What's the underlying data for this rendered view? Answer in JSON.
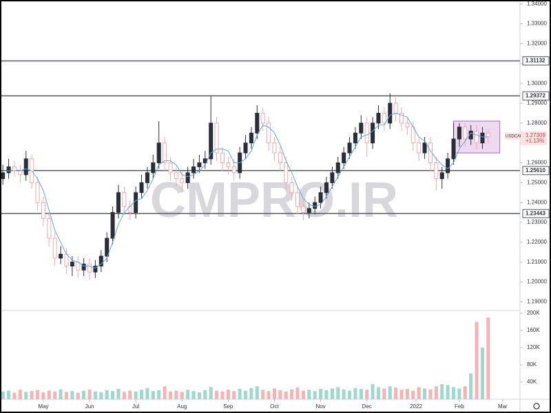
{
  "chart_data": [
    {
      "type": "candlestick",
      "symbol": "USDCAD",
      "last_price": {
        "value": 1.27309,
        "label": "1.27309"
      },
      "change": "+1.13%",
      "watermark": "CMPRO.IR",
      "up_color": "#2a2e39",
      "down_color": "#f4a7a7",
      "ma_color": "#5aa9e6",
      "xlim": [
        -0.5,
        89.5
      ],
      "ylim": [
        1.186,
        1.342
      ],
      "yticks": [
        {
          "value": 1.19,
          "label": "1.19000"
        },
        {
          "value": 1.2,
          "label": "1.20000"
        },
        {
          "value": 1.21,
          "label": "1.21000"
        },
        {
          "value": 1.22,
          "label": "1.22000"
        },
        {
          "value": 1.23,
          "label": "1.23000"
        },
        {
          "value": 1.24,
          "label": "1.24000"
        },
        {
          "value": 1.25,
          "label": "1.25000"
        },
        {
          "value": 1.26,
          "label": "1.26000"
        },
        {
          "value": 1.27,
          "label": "1.27000"
        },
        {
          "value": 1.28,
          "label": "1.28000"
        },
        {
          "value": 1.29,
          "label": "1.29000"
        },
        {
          "value": 1.3,
          "label": "1.30000"
        },
        {
          "value": 1.31,
          "label": "1.31000"
        },
        {
          "value": 1.32,
          "label": "1.32000"
        },
        {
          "value": 1.33,
          "label": "1.33000"
        },
        {
          "value": 1.34,
          "label": "1.34000"
        }
      ],
      "levels": [
        {
          "value": 1.31132,
          "label": "1.31132"
        },
        {
          "value": 1.29372,
          "label": "1.29372"
        },
        {
          "value": 1.2561,
          "label": "1.25610"
        },
        {
          "value": 1.23443,
          "label": "1.23443"
        }
      ],
      "range_box": {
        "start": 78,
        "end": 86,
        "low": 1.265,
        "high": 1.281
      },
      "open": [
        1.252,
        1.255,
        1.258,
        1.256,
        1.254,
        1.262,
        1.25,
        1.24,
        1.232,
        1.222,
        1.212,
        1.214,
        1.208,
        1.21,
        1.206,
        1.209,
        1.205,
        1.208,
        1.213,
        1.222,
        1.235,
        1.245,
        1.238,
        1.235,
        1.245,
        1.25,
        1.255,
        1.26,
        1.27,
        1.26,
        1.255,
        1.252,
        1.25,
        1.255,
        1.258,
        1.26,
        1.262,
        1.28,
        1.265,
        1.26,
        1.258,
        1.255,
        1.265,
        1.27,
        1.275,
        1.285,
        1.28,
        1.27,
        1.265,
        1.26,
        1.25,
        1.245,
        1.238,
        1.235,
        1.237,
        1.24,
        1.245,
        1.25,
        1.255,
        1.26,
        1.265,
        1.27,
        1.275,
        1.28,
        1.27,
        1.28,
        1.285,
        1.28,
        1.29,
        1.285,
        1.28,
        1.278,
        1.27,
        1.265,
        1.27,
        1.26,
        1.252,
        1.255,
        1.262,
        1.272,
        1.278,
        1.272,
        1.276,
        1.27,
        1.275
      ],
      "high": [
        1.259,
        1.262,
        1.261,
        1.259,
        1.266,
        1.264,
        1.253,
        1.243,
        1.235,
        1.225,
        1.218,
        1.217,
        1.213,
        1.213,
        1.212,
        1.212,
        1.211,
        1.216,
        1.225,
        1.238,
        1.249,
        1.248,
        1.241,
        1.248,
        1.254,
        1.258,
        1.264,
        1.281,
        1.273,
        1.263,
        1.258,
        1.256,
        1.258,
        1.262,
        1.264,
        1.266,
        1.294,
        1.283,
        1.268,
        1.263,
        1.262,
        1.268,
        1.274,
        1.278,
        1.289,
        1.288,
        1.283,
        1.273,
        1.268,
        1.263,
        1.253,
        1.248,
        1.241,
        1.24,
        1.243,
        1.248,
        1.253,
        1.258,
        1.263,
        1.268,
        1.273,
        1.278,
        1.284,
        1.283,
        1.283,
        1.289,
        1.288,
        1.295,
        1.293,
        1.288,
        1.283,
        1.281,
        1.273,
        1.273,
        1.273,
        1.263,
        1.258,
        1.265,
        1.28,
        1.28,
        1.28,
        1.279,
        1.279,
        1.278,
        1.277
      ],
      "low": [
        1.249,
        1.252,
        1.253,
        1.25,
        1.251,
        1.247,
        1.236,
        1.228,
        1.218,
        1.208,
        1.209,
        1.204,
        1.203,
        1.202,
        1.203,
        1.201,
        1.202,
        1.205,
        1.21,
        1.219,
        1.232,
        1.234,
        1.231,
        1.232,
        1.242,
        1.247,
        1.252,
        1.257,
        1.256,
        1.251,
        1.248,
        1.245,
        1.247,
        1.252,
        1.255,
        1.257,
        1.259,
        1.261,
        1.256,
        1.254,
        1.251,
        1.252,
        1.262,
        1.267,
        1.272,
        1.276,
        1.266,
        1.261,
        1.256,
        1.246,
        1.241,
        1.234,
        1.231,
        1.232,
        1.234,
        1.237,
        1.242,
        1.247,
        1.252,
        1.257,
        1.262,
        1.267,
        1.272,
        1.263,
        1.267,
        1.277,
        1.276,
        1.277,
        1.281,
        1.276,
        1.274,
        1.266,
        1.261,
        1.262,
        1.256,
        1.246,
        1.247,
        1.252,
        1.259,
        1.268,
        1.268,
        1.269,
        1.267,
        1.267,
        1.27
      ],
      "close": [
        1.255,
        1.258,
        1.256,
        1.254,
        1.262,
        1.25,
        1.24,
        1.232,
        1.222,
        1.212,
        1.214,
        1.208,
        1.21,
        1.206,
        1.209,
        1.205,
        1.208,
        1.213,
        1.222,
        1.235,
        1.245,
        1.238,
        1.235,
        1.245,
        1.25,
        1.255,
        1.26,
        1.27,
        1.26,
        1.255,
        1.252,
        1.25,
        1.255,
        1.258,
        1.26,
        1.262,
        1.28,
        1.265,
        1.26,
        1.258,
        1.255,
        1.265,
        1.27,
        1.275,
        1.285,
        1.28,
        1.27,
        1.265,
        1.26,
        1.25,
        1.245,
        1.238,
        1.235,
        1.237,
        1.24,
        1.245,
        1.25,
        1.255,
        1.26,
        1.265,
        1.27,
        1.275,
        1.28,
        1.27,
        1.28,
        1.285,
        1.28,
        1.29,
        1.285,
        1.28,
        1.278,
        1.27,
        1.265,
        1.27,
        1.26,
        1.252,
        1.255,
        1.262,
        1.272,
        1.278,
        1.272,
        1.276,
        1.27,
        1.275,
        1.2731
      ],
      "ma": [
        1.256,
        1.256,
        1.256,
        1.256,
        1.257,
        1.256,
        1.252,
        1.246,
        1.236,
        1.226,
        1.22,
        1.214,
        1.211,
        1.21,
        1.208,
        1.208,
        1.207,
        1.209,
        1.212,
        1.22,
        1.229,
        1.235,
        1.238,
        1.241,
        1.242,
        1.246,
        1.252,
        1.259,
        1.261,
        1.261,
        1.259,
        1.254,
        1.253,
        1.254,
        1.256,
        1.259,
        1.265,
        1.267,
        1.267,
        1.266,
        1.26,
        1.26,
        1.262,
        1.266,
        1.274,
        1.279,
        1.278,
        1.275,
        1.269,
        1.261,
        1.255,
        1.248,
        1.242,
        1.239,
        1.238,
        1.239,
        1.243,
        1.248,
        1.253,
        1.258,
        1.263,
        1.268,
        1.273,
        1.274,
        1.276,
        1.279,
        1.279,
        1.284,
        1.285,
        1.284,
        1.283,
        1.278,
        1.273,
        1.271,
        1.266,
        1.262,
        1.259,
        1.257,
        1.26,
        1.267,
        1.271,
        1.275,
        1.274,
        1.273,
        1.273
      ]
    },
    {
      "type": "bar",
      "up_color": "#9fd8cc",
      "down_color": "#f6b3b3",
      "xlim": [
        -0.5,
        89.5
      ],
      "ylim": [
        0,
        205000
      ],
      "yticks": [
        {
          "value": 40000,
          "label": "40K"
        },
        {
          "value": 80000,
          "label": "80K"
        },
        {
          "value": 120000,
          "label": "120K"
        },
        {
          "value": 160000,
          "label": "160K"
        },
        {
          "value": 200000,
          "label": "200K"
        }
      ],
      "xticks": [
        {
          "value": 7,
          "label": "May"
        },
        {
          "value": 15,
          "label": "Jun"
        },
        {
          "value": 23,
          "label": "Jul"
        },
        {
          "value": 31,
          "label": "Aug"
        },
        {
          "value": 39,
          "label": "Sep"
        },
        {
          "value": 47,
          "label": "Oct"
        },
        {
          "value": 55,
          "label": "Nov"
        },
        {
          "value": 63,
          "label": "Dec"
        },
        {
          "value": 71.5,
          "label": "2022"
        },
        {
          "value": 79,
          "label": "Feb"
        },
        {
          "value": 86.5,
          "label": "Mar"
        }
      ],
      "values": [
        18000,
        20000,
        15000,
        22000,
        17000,
        19000,
        21000,
        16000,
        20000,
        18000,
        23000,
        17000,
        19000,
        15000,
        20000,
        22000,
        18000,
        16000,
        21000,
        19000,
        24000,
        17000,
        20000,
        18000,
        22000,
        26000,
        19000,
        21000,
        30000,
        18000,
        20000,
        17000,
        22000,
        19000,
        16000,
        21000,
        28000,
        20000,
        18000,
        22000,
        19000,
        24000,
        20000,
        26000,
        30000,
        22000,
        19000,
        25000,
        21000,
        18000,
        23000,
        27000,
        20000,
        22000,
        19000,
        24000,
        21000,
        25000,
        28000,
        23000,
        20000,
        26000,
        24000,
        22000,
        35000,
        28000,
        25000,
        30000,
        27000,
        22000,
        24000,
        20000,
        28000,
        25000,
        23000,
        30000,
        35000,
        33000,
        28000,
        25000,
        30000,
        60000,
        180000,
        120000,
        190000
      ]
    }
  ]
}
